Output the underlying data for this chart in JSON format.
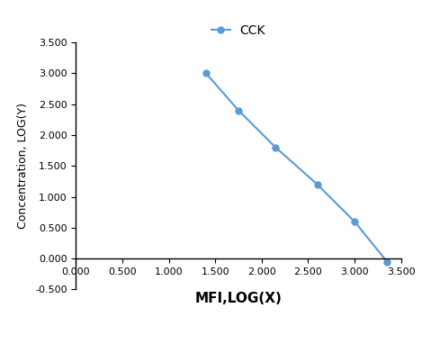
{
  "x": [
    1.4,
    1.75,
    2.15,
    2.6,
    3.0,
    3.35
  ],
  "y": [
    3.0,
    2.4,
    1.8,
    1.2,
    0.6,
    -0.05
  ],
  "line_color": "#5b9bd5",
  "marker": "o",
  "marker_size": 5,
  "line_width": 1.5,
  "legend_label": "CCK",
  "xlabel": "MFI,LOG(X)",
  "ylabel": "Concentration, LOG(Y)",
  "xlim": [
    0.0,
    3.5
  ],
  "ylim": [
    -0.5,
    3.5
  ],
  "xticks": [
    0.0,
    0.5,
    1.0,
    1.5,
    2.0,
    2.5,
    3.0,
    3.5
  ],
  "yticks": [
    -0.5,
    0.0,
    0.5,
    1.0,
    1.5,
    2.0,
    2.5,
    3.0,
    3.5
  ],
  "xlabel_fontsize": 11,
  "ylabel_fontsize": 9,
  "tick_fontsize": 8,
  "legend_fontsize": 10,
  "background_color": "#ffffff"
}
